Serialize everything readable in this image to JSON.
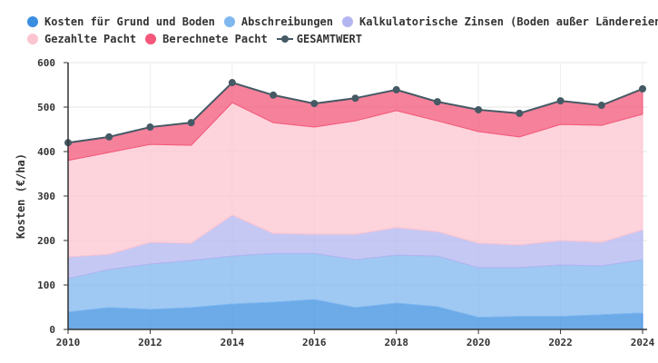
{
  "chart_data": {
    "type": "area",
    "stacked": true,
    "x": [
      2010,
      2011,
      2012,
      2013,
      2014,
      2015,
      2016,
      2017,
      2018,
      2019,
      2020,
      2021,
      2022,
      2023,
      2024
    ],
    "xticks": [
      "2010",
      "2012",
      "2014",
      "2016",
      "2018",
      "2020",
      "2022",
      "2024"
    ],
    "yticks": [
      "0",
      "100",
      "200",
      "300",
      "400",
      "500",
      "600"
    ],
    "ylim": [
      0,
      600
    ],
    "ylabel": "Kosten (€/ha)",
    "xlabel": "",
    "legend_position": "top",
    "grid": true,
    "series": [
      {
        "name": "Kosten für Grund und Boden",
        "color": "#3b8de0",
        "values": [
          39,
          49,
          45,
          49,
          57,
          61,
          67,
          49,
          59,
          51,
          27,
          29,
          29,
          33,
          37
        ]
      },
      {
        "name": "Abschreibungen",
        "color": "#7fb7ef",
        "values": [
          75,
          86,
          102,
          106,
          108,
          110,
          104,
          108,
          108,
          114,
          112,
          110,
          116,
          110,
          120
        ]
      },
      {
        "name": "Kalkulatorische Zinsen (Boden außer Ländereien)",
        "color": "#b3b5f0",
        "values": [
          49,
          34,
          49,
          39,
          92,
          45,
          43,
          57,
          62,
          55,
          55,
          51,
          55,
          53,
          67
        ]
      },
      {
        "name": "Gezahlte Pacht",
        "color": "#fcc4d0",
        "values": [
          217,
          229,
          220,
          220,
          253,
          249,
          241,
          255,
          263,
          249,
          251,
          243,
          261,
          263,
          260
        ]
      },
      {
        "name": "Berechnete Pacht",
        "color": "#f3577a",
        "values": [
          40,
          35,
          39,
          51,
          45,
          62,
          53,
          51,
          47,
          43,
          49,
          53,
          53,
          45,
          57
        ]
      }
    ],
    "total": {
      "name": "GESAMTWERT",
      "color": "#455a64",
      "values": [
        420,
        433,
        455,
        465,
        555,
        527,
        508,
        520,
        539,
        512,
        494,
        486,
        514,
        504,
        541
      ]
    }
  }
}
